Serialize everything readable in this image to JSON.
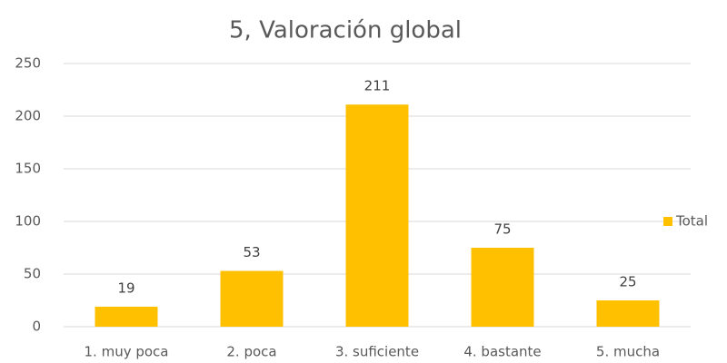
{
  "chart_data": {
    "type": "bar",
    "title": "5, Valoración global",
    "categories": [
      "1. muy poca",
      "2. poca",
      "3. suficiente",
      "4. bastante",
      "5. mucha"
    ],
    "series": [
      {
        "name": "Total",
        "color": "#ffc000",
        "values": [
          19,
          53,
          211,
          75,
          25
        ]
      }
    ],
    "ylim": [
      0,
      250
    ],
    "yticks": [
      0,
      50,
      100,
      150,
      200,
      250
    ],
    "grid": true,
    "legend": "right"
  }
}
